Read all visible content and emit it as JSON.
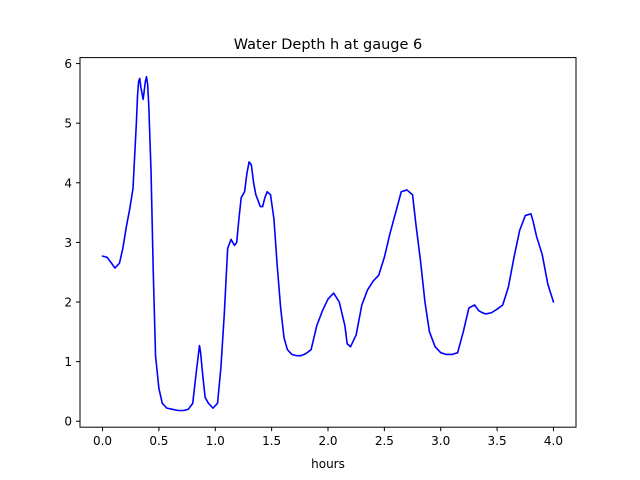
{
  "chart_data": {
    "type": "line",
    "title": "Water Depth h at gauge 6",
    "xlabel": "hours",
    "ylabel": "",
    "xlim": [
      -0.2,
      4.2
    ],
    "ylim": [
      -0.1,
      6.1
    ],
    "xticks": [
      0.0,
      0.5,
      1.0,
      1.5,
      2.0,
      2.5,
      3.0,
      3.5,
      4.0
    ],
    "xtick_labels": [
      "0.0",
      "0.5",
      "1.0",
      "1.5",
      "2.0",
      "2.5",
      "3.0",
      "3.5",
      "4.0"
    ],
    "yticks": [
      0,
      1,
      2,
      3,
      4,
      5,
      6
    ],
    "ytick_labels": [
      "0",
      "1",
      "2",
      "3",
      "4",
      "5",
      "6"
    ],
    "grid": false,
    "line_color": "#0000ff",
    "series": [
      {
        "x": [
          0.0,
          0.04,
          0.08,
          0.11,
          0.15,
          0.18,
          0.21,
          0.24,
          0.27,
          0.3,
          0.31,
          0.32,
          0.33,
          0.34,
          0.36,
          0.38,
          0.39,
          0.4,
          0.41,
          0.43,
          0.45,
          0.47,
          0.5,
          0.53,
          0.57,
          0.62,
          0.67,
          0.72,
          0.76,
          0.8,
          0.83,
          0.86,
          0.87,
          0.89,
          0.91,
          0.94,
          0.98,
          1.02,
          1.05,
          1.08,
          1.11,
          1.14,
          1.17,
          1.19,
          1.21,
          1.23,
          1.26,
          1.28,
          1.3,
          1.32,
          1.34,
          1.36,
          1.38,
          1.4,
          1.42,
          1.44,
          1.46,
          1.49,
          1.52,
          1.55,
          1.58,
          1.61,
          1.64,
          1.68,
          1.72,
          1.76,
          1.8,
          1.85,
          1.9,
          1.95,
          2.0,
          2.05,
          2.1,
          2.15,
          2.17,
          2.2,
          2.25,
          2.3,
          2.35,
          2.4,
          2.45,
          2.5,
          2.55,
          2.6,
          2.65,
          2.7,
          2.75,
          2.78,
          2.82,
          2.86,
          2.9,
          2.95,
          3.0,
          3.05,
          3.1,
          3.15,
          3.2,
          3.25,
          3.3,
          3.34,
          3.37,
          3.4,
          3.45,
          3.5,
          3.55,
          3.6,
          3.65,
          3.7,
          3.75,
          3.8,
          3.82,
          3.85,
          3.9,
          3.95,
          4.0
        ],
        "y": [
          2.77,
          2.75,
          2.65,
          2.57,
          2.65,
          2.9,
          3.25,
          3.55,
          3.9,
          5.0,
          5.45,
          5.7,
          5.75,
          5.6,
          5.4,
          5.7,
          5.78,
          5.65,
          5.3,
          4.2,
          2.5,
          1.1,
          0.55,
          0.3,
          0.22,
          0.2,
          0.18,
          0.18,
          0.2,
          0.3,
          0.8,
          1.27,
          1.15,
          0.75,
          0.4,
          0.3,
          0.22,
          0.3,
          0.9,
          1.8,
          2.9,
          3.05,
          2.95,
          3.0,
          3.4,
          3.75,
          3.85,
          4.15,
          4.35,
          4.3,
          4.0,
          3.8,
          3.7,
          3.6,
          3.6,
          3.75,
          3.85,
          3.8,
          3.4,
          2.6,
          1.9,
          1.4,
          1.2,
          1.12,
          1.1,
          1.1,
          1.13,
          1.2,
          1.6,
          1.85,
          2.05,
          2.15,
          2.0,
          1.6,
          1.3,
          1.25,
          1.45,
          1.95,
          2.2,
          2.35,
          2.45,
          2.75,
          3.15,
          3.5,
          3.85,
          3.88,
          3.8,
          3.3,
          2.7,
          2.0,
          1.5,
          1.25,
          1.15,
          1.12,
          1.12,
          1.15,
          1.5,
          1.9,
          1.95,
          1.85,
          1.82,
          1.8,
          1.82,
          1.88,
          1.95,
          2.25,
          2.75,
          3.2,
          3.45,
          3.48,
          3.35,
          3.1,
          2.8,
          2.3,
          2.0
        ]
      }
    ]
  }
}
